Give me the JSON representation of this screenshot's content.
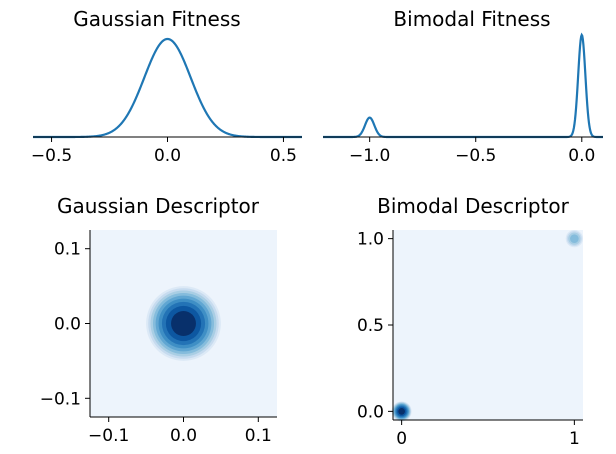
{
  "colors": {
    "line": "#1f77b4",
    "axis": "#000000",
    "contour": [
      "#edf4fc",
      "#dce9f6",
      "#c6dbef",
      "#a9cee4",
      "#85bcdc",
      "#60a6d2",
      "#3f8fc5",
      "#2373b6",
      "#0d57a1",
      "#08306b"
    ]
  },
  "chart_data": [
    {
      "type": "line",
      "title": "Gaussian Fitness",
      "xlim": [
        -0.58,
        0.58
      ],
      "xticks": [
        -0.5,
        0.0,
        0.5
      ],
      "xtick_labels": [
        "−0.5",
        "0.0",
        "0.5"
      ],
      "y_axis_visible": false,
      "curve": {
        "kind": "gaussian",
        "mean": 0.0,
        "sd": 0.1,
        "peak": 1.0
      }
    },
    {
      "type": "line",
      "title": "Bimodal Fitness",
      "xlim": [
        -1.22,
        0.1
      ],
      "xticks": [
        -1.0,
        -0.5,
        0.0
      ],
      "xtick_labels": [
        "−1.0",
        "−0.5",
        "0.0"
      ],
      "y_axis_visible": false,
      "peaks": [
        {
          "x": -1.0,
          "height": 0.19,
          "sd": 0.022
        },
        {
          "x": 0.0,
          "height": 1.0,
          "sd": 0.017
        }
      ]
    },
    {
      "type": "heatmap",
      "title": "Gaussian Descriptor",
      "xlim": [
        -0.125,
        0.125
      ],
      "ylim": [
        -0.125,
        0.125
      ],
      "xticks": [
        -0.1,
        0.0,
        0.1
      ],
      "xtick_labels": [
        "−0.1",
        "0.0",
        "0.1"
      ],
      "yticks": [
        -0.1,
        0.0,
        0.1
      ],
      "ytick_labels": [
        "−0.1",
        "0.0",
        "0.1"
      ],
      "centers": [
        {
          "x": 0.0,
          "y": 0.0,
          "radius": 0.05
        }
      ]
    },
    {
      "type": "heatmap",
      "title": "Bimodal Descriptor",
      "xlim": [
        -0.05,
        1.05
      ],
      "ylim": [
        -0.05,
        1.05
      ],
      "xticks": [
        0,
        1
      ],
      "xtick_labels": [
        "0",
        "1"
      ],
      "yticks": [
        0.0,
        0.5,
        1.0
      ],
      "ytick_labels": [
        "0.0",
        "0.5",
        "1.0"
      ],
      "centers": [
        {
          "x": 0.0,
          "y": 0.0,
          "radius": 0.058,
          "strength": 1.0
        },
        {
          "x": 1.0,
          "y": 1.0,
          "radius": 0.05,
          "strength": 0.45
        }
      ]
    }
  ]
}
